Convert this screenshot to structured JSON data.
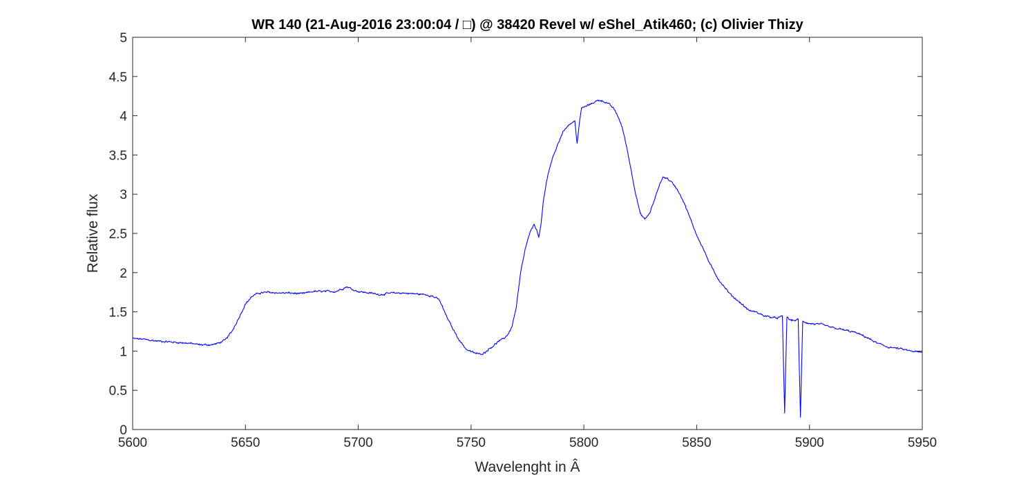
{
  "chart_data": {
    "type": "line",
    "title": "WR 140 (21-Aug-2016 23:00:04 / □) @ 38420 Revel w/ eShel_Atik460; (c) Olivier Thizy",
    "xlabel": "Wavelenght in Â",
    "ylabel": "Relative flux",
    "xlim": [
      5600,
      5950
    ],
    "ylim": [
      0,
      5
    ],
    "xticks": [
      5600,
      5650,
      5700,
      5750,
      5800,
      5850,
      5900,
      5950
    ],
    "yticks": [
      0,
      0.5,
      1,
      1.5,
      2,
      2.5,
      3,
      3.5,
      4,
      4.5,
      5
    ],
    "xtick_labels": [
      "5600",
      "5650",
      "5700",
      "5750",
      "5800",
      "5850",
      "5900",
      "5950"
    ],
    "ytick_labels": [
      "0",
      "0.5",
      "1",
      "1.5",
      "2",
      "2.5",
      "3",
      "3.5",
      "4",
      "4.5",
      "5"
    ],
    "grid": false,
    "series_color": "#0000ff",
    "series": [
      {
        "x": [
          5600,
          5605,
          5610,
          5615,
          5620,
          5625,
          5630,
          5635,
          5638,
          5641,
          5644,
          5647,
          5650,
          5653,
          5656,
          5660,
          5665,
          5670,
          5675,
          5680,
          5685,
          5690,
          5695,
          5698,
          5700,
          5705,
          5710,
          5715,
          5720,
          5725,
          5730,
          5733,
          5736,
          5739,
          5742,
          5745,
          5748,
          5751,
          5754,
          5756,
          5758,
          5760,
          5762,
          5764,
          5766,
          5768,
          5770,
          5772,
          5774,
          5776,
          5778,
          5779,
          5780,
          5781,
          5782,
          5784,
          5786,
          5788,
          5790,
          5792,
          5794,
          5796,
          5797,
          5798,
          5799,
          5801,
          5803,
          5805,
          5807,
          5809,
          5811,
          5813,
          5815,
          5817,
          5819,
          5821,
          5823,
          5825,
          5827,
          5829,
          5831,
          5833,
          5835,
          5837,
          5839,
          5841,
          5843,
          5845,
          5847,
          5850,
          5853,
          5856,
          5860,
          5865,
          5870,
          5873,
          5876,
          5880,
          5885,
          5888,
          5889,
          5890,
          5891,
          5893,
          5895,
          5896,
          5897,
          5900,
          5905,
          5910,
          5915,
          5920,
          5925,
          5930,
          5935,
          5940,
          5945,
          5950
        ],
        "values": [
          1.16,
          1.15,
          1.13,
          1.12,
          1.11,
          1.1,
          1.08,
          1.08,
          1.1,
          1.14,
          1.25,
          1.42,
          1.6,
          1.7,
          1.74,
          1.75,
          1.74,
          1.74,
          1.73,
          1.76,
          1.76,
          1.76,
          1.82,
          1.78,
          1.76,
          1.74,
          1.72,
          1.74,
          1.74,
          1.73,
          1.72,
          1.7,
          1.65,
          1.45,
          1.28,
          1.13,
          1.02,
          0.98,
          0.96,
          0.98,
          1.03,
          1.07,
          1.12,
          1.15,
          1.2,
          1.3,
          1.55,
          2.0,
          2.3,
          2.5,
          2.62,
          2.55,
          2.45,
          2.6,
          2.9,
          3.25,
          3.45,
          3.6,
          3.75,
          3.85,
          3.9,
          3.93,
          3.65,
          3.9,
          4.1,
          4.12,
          4.15,
          4.18,
          4.2,
          4.18,
          4.15,
          4.1,
          4.0,
          3.85,
          3.6,
          3.3,
          3.0,
          2.75,
          2.68,
          2.75,
          2.9,
          3.08,
          3.22,
          3.2,
          3.15,
          3.08,
          2.98,
          2.85,
          2.7,
          2.48,
          2.3,
          2.1,
          1.9,
          1.72,
          1.6,
          1.52,
          1.5,
          1.45,
          1.42,
          1.44,
          0.2,
          1.44,
          1.4,
          1.39,
          1.4,
          0.15,
          1.38,
          1.35,
          1.34,
          1.3,
          1.27,
          1.24,
          1.18,
          1.1,
          1.05,
          1.03,
          1.0,
          0.98
        ],
        "noise_amplitude": 0.018
      }
    ]
  }
}
